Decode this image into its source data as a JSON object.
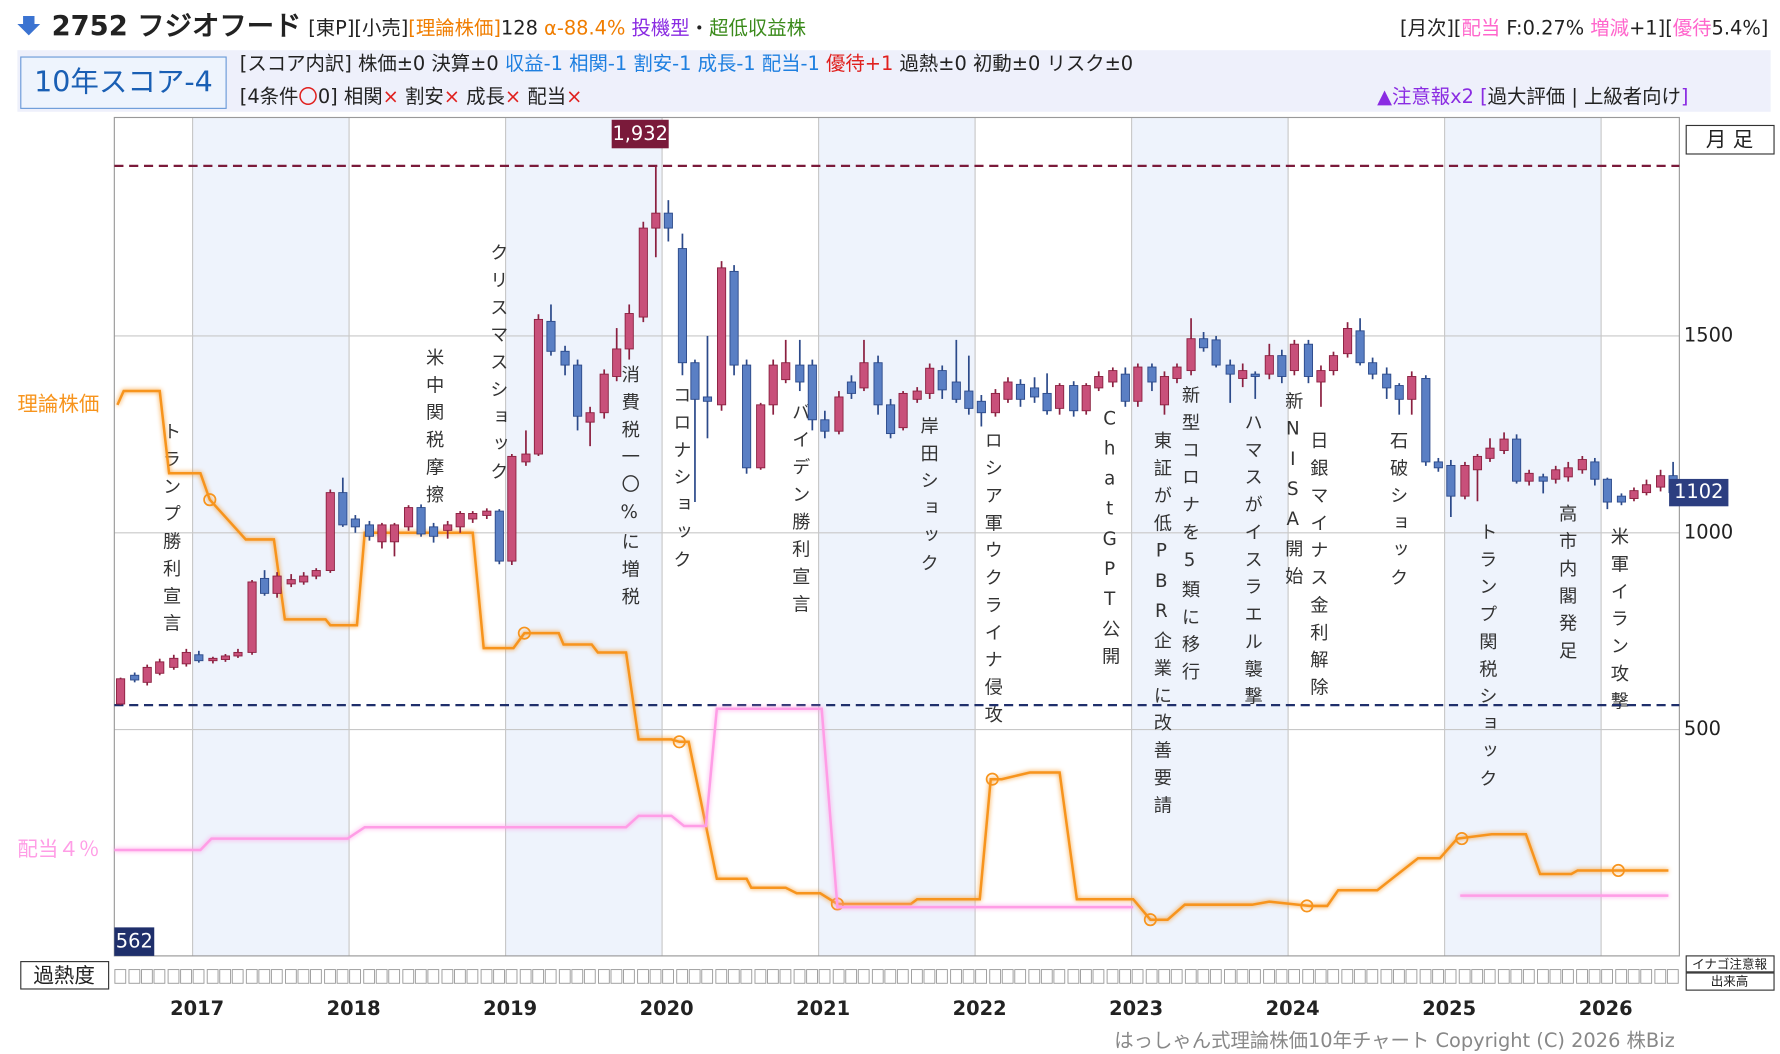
{
  "header": {
    "title": "2752 フジオフード",
    "tags": [
      {
        "text": "[東P][小売]",
        "color": "#222222"
      },
      {
        "text": "[理論株価]",
        "color": "#f07d00"
      },
      {
        "text": "128",
        "color": "#222222"
      },
      {
        "text": " α-88.4%",
        "color": "#f07d00"
      },
      {
        "text": " 投機型",
        "color": "#8a2be2"
      },
      {
        "text": "・",
        "color": "#222222"
      },
      {
        "text": "超低収益株",
        "color": "#3a8a1a"
      }
    ],
    "right_tags": [
      {
        "text": "[月次][",
        "color": "#222222"
      },
      {
        "text": "配当",
        "color": "#ff66cc"
      },
      {
        "text": " F:0.27% ",
        "color": "#222222"
      },
      {
        "text": "増減",
        "color": "#ff66cc"
      },
      {
        "text": "+1][",
        "color": "#222222"
      },
      {
        "text": "優待",
        "color": "#ff66cc"
      },
      {
        "text": "5.4%]",
        "color": "#222222"
      }
    ],
    "score": "10年スコア-4",
    "score_breakdown": [
      {
        "text": "[スコア内訳] 株価±0 決算±0 ",
        "color": "#222222"
      },
      {
        "text": "収益-1 相関-1 割安-1 成長-1 配当-1",
        "color": "#1e7fe0"
      },
      {
        "text": " 優待+1",
        "color": "#e0201e"
      },
      {
        "text": " 過熱±0 初動±0 リスク±0",
        "color": "#222222"
      }
    ],
    "conditions": [
      {
        "text": "[4条件",
        "color": "#222222"
      },
      {
        "text": "〇",
        "color": "#e0201e"
      },
      {
        "text": "0] 相関",
        "color": "#222222"
      },
      {
        "text": "×",
        "color": "#e0201e"
      },
      {
        "text": " 割安",
        "color": "#222222"
      },
      {
        "text": "×",
        "color": "#e0201e"
      },
      {
        "text": " 成長",
        "color": "#222222"
      },
      {
        "text": "×",
        "color": "#e0201e"
      },
      {
        "text": " 配当",
        "color": "#222222"
      },
      {
        "text": "×",
        "color": "#e0201e"
      }
    ],
    "alerts": [
      {
        "text": "▲注意報x2",
        "color": "#8a2be2"
      },
      {
        "text": " [",
        "color": "#8a2be2"
      },
      {
        "text": "過大評価 | 上級者向け",
        "color": "#222222"
      },
      {
        "text": "]",
        "color": "#8a2be2"
      }
    ]
  },
  "chart_data": {
    "type": "candlestick",
    "period": "月 足",
    "up_color": "#c8507a",
    "down_color": "#5a7fc4",
    "xlim": [
      2016.5,
      2026.5
    ],
    "xticks": [
      2017,
      2018,
      2019,
      2020,
      2021,
      2022,
      2023,
      2024,
      2025,
      2026
    ],
    "ylim": [
      -75,
      2055
    ],
    "yticks": [
      500,
      1000,
      1500
    ],
    "grid": true,
    "x": [
      2016.54,
      2016.63,
      2016.71,
      2016.79,
      2016.88,
      2016.96,
      2017.04,
      2017.13,
      2017.21,
      2017.29,
      2017.38,
      2017.46,
      2017.54,
      2017.63,
      2017.71,
      2017.79,
      2017.88,
      2017.96,
      2018.04,
      2018.13,
      2018.21,
      2018.29,
      2018.38,
      2018.46,
      2018.54,
      2018.63,
      2018.71,
      2018.79,
      2018.88,
      2018.96,
      2019.04,
      2019.13,
      2019.21,
      2019.29,
      2019.38,
      2019.46,
      2019.54,
      2019.63,
      2019.71,
      2019.79,
      2019.88,
      2019.96,
      2020.04,
      2020.13,
      2020.21,
      2020.29,
      2020.38,
      2020.46,
      2020.54,
      2020.63,
      2020.71,
      2020.79,
      2020.88,
      2020.96,
      2021.04,
      2021.13,
      2021.21,
      2021.29,
      2021.38,
      2021.46,
      2021.54,
      2021.63,
      2021.71,
      2021.79,
      2021.88,
      2021.96,
      2022.04,
      2022.13,
      2022.21,
      2022.29,
      2022.38,
      2022.46,
      2022.54,
      2022.63,
      2022.71,
      2022.79,
      2022.88,
      2022.96,
      2023.04,
      2023.13,
      2023.21,
      2023.29,
      2023.38,
      2023.46,
      2023.54,
      2023.63,
      2023.71,
      2023.79,
      2023.88,
      2023.96,
      2024.04,
      2024.13,
      2024.21,
      2024.29,
      2024.38,
      2024.46,
      2024.54,
      2024.63,
      2024.71,
      2024.79,
      2024.88,
      2024.96,
      2025.04,
      2025.13,
      2025.21,
      2025.29,
      2025.38,
      2025.46,
      2025.54,
      2025.63,
      2025.71,
      2025.79,
      2025.88,
      2025.96,
      2026.04,
      2026.13,
      2026.21,
      2026.29,
      2026.38,
      2026.46
    ],
    "open": [
      565,
      638,
      620,
      643,
      658,
      667,
      690,
      675,
      678,
      687,
      696,
      884,
      846,
      870,
      875,
      890,
      904,
      1102,
      1035,
      1020,
      977,
      977,
      1015,
      1064,
      1015,
      1006,
      1015,
      1035,
      1044,
      1055,
      928,
      1180,
      1200,
      1537,
      1461,
      1426,
      1281,
      1305,
      1397,
      1467,
      1548,
      1774,
      1812,
      1722,
      1432,
      1345,
      1325,
      1664,
      1426,
      1165,
      1325,
      1389,
      1426,
      1426,
      1287,
      1258,
      1383,
      1368,
      1432,
      1325,
      1267,
      1339,
      1354,
      1412,
      1383,
      1360,
      1334,
      1305,
      1339,
      1377,
      1368,
      1354,
      1316,
      1374,
      1310,
      1368,
      1383,
      1403,
      1334,
      1421,
      1325,
      1392,
      1412,
      1493,
      1490,
      1426,
      1392,
      1403,
      1403,
      1450,
      1412,
      1479,
      1383,
      1412,
      1455,
      1513,
      1432,
      1403,
      1374,
      1339,
      1392,
      1180,
      1171,
      1093,
      1160,
      1189,
      1209,
      1238,
      1131,
      1142,
      1136,
      1142,
      1160,
      1180,
      1136,
      1093,
      1087,
      1102,
      1116,
      1145
    ],
    "high": [
      632,
      645,
      665,
      680,
      690,
      705,
      700,
      685,
      692,
      705,
      880,
      905,
      900,
      895,
      900,
      910,
      1110,
      1140,
      1045,
      1030,
      1025,
      1025,
      1070,
      1072,
      1025,
      1030,
      1055,
      1055,
      1062,
      1060,
      1200,
      1260,
      1555,
      1580,
      1475,
      1440,
      1320,
      1415,
      1520,
      1580,
      1790,
      1932,
      1845,
      1760,
      1440,
      1500,
      1690,
      1680,
      1440,
      1330,
      1440,
      1490,
      1490,
      1440,
      1310,
      1360,
      1400,
      1490,
      1450,
      1340,
      1360,
      1370,
      1430,
      1425,
      1490,
      1450,
      1350,
      1365,
      1395,
      1390,
      1395,
      1405,
      1380,
      1385,
      1380,
      1410,
      1420,
      1420,
      1430,
      1430,
      1410,
      1430,
      1545,
      1510,
      1500,
      1440,
      1430,
      1410,
      1480,
      1465,
      1490,
      1490,
      1425,
      1460,
      1535,
      1545,
      1445,
      1420,
      1380,
      1410,
      1400,
      1190,
      1185,
      1180,
      1200,
      1240,
      1255,
      1250,
      1160,
      1150,
      1170,
      1180,
      1195,
      1190,
      1140,
      1100,
      1115,
      1135,
      1160,
      1180
    ],
    "low": [
      562,
      620,
      612,
      638,
      652,
      660,
      670,
      668,
      672,
      682,
      690,
      840,
      835,
      862,
      868,
      882,
      898,
      1015,
      1000,
      980,
      960,
      940,
      1005,
      990,
      975,
      985,
      1000,
      1025,
      1035,
      920,
      918,
      1170,
      1195,
      1450,
      1400,
      1260,
      1220,
      1290,
      1385,
      1440,
      1535,
      1700,
      1740,
      1400,
      1078,
      1240,
      1310,
      1400,
      1150,
      1160,
      1300,
      1380,
      1360,
      1260,
      1240,
      1250,
      1340,
      1360,
      1300,
      1240,
      1260,
      1330,
      1340,
      1340,
      1330,
      1300,
      1270,
      1295,
      1330,
      1320,
      1330,
      1300,
      1300,
      1295,
      1300,
      1360,
      1370,
      1320,
      1320,
      1360,
      1300,
      1380,
      1400,
      1460,
      1420,
      1330,
      1370,
      1340,
      1390,
      1380,
      1400,
      1380,
      1320,
      1400,
      1445,
      1425,
      1390,
      1340,
      1300,
      1300,
      1170,
      1155,
      1040,
      1085,
      1080,
      1180,
      1200,
      1125,
      1120,
      1100,
      1125,
      1130,
      1150,
      1120,
      1060,
      1070,
      1080,
      1095,
      1105,
      1095
    ],
    "close": [
      629,
      626,
      658,
      672,
      681,
      696,
      675,
      681,
      687,
      696,
      875,
      846,
      890,
      881,
      890,
      904,
      1102,
      1020,
      1015,
      991,
      1020,
      1020,
      1064,
      997,
      991,
      1020,
      1049,
      1049,
      1055,
      928,
      1194,
      1200,
      1542,
      1461,
      1426,
      1296,
      1305,
      1403,
      1467,
      1557,
      1774,
      1812,
      1774,
      1432,
      1339,
      1334,
      1673,
      1426,
      1165,
      1325,
      1426,
      1432,
      1383,
      1287,
      1258,
      1345,
      1354,
      1432,
      1325,
      1252,
      1354,
      1360,
      1418,
      1363,
      1339,
      1316,
      1305,
      1354,
      1383,
      1339,
      1345,
      1310,
      1374,
      1310,
      1374,
      1397,
      1412,
      1334,
      1421,
      1383,
      1397,
      1421,
      1493,
      1470,
      1426,
      1403,
      1412,
      1397,
      1450,
      1397,
      1479,
      1397,
      1412,
      1450,
      1519,
      1432,
      1403,
      1368,
      1339,
      1397,
      1180,
      1165,
      1093,
      1171,
      1194,
      1215,
      1238,
      1131,
      1151,
      1131,
      1160,
      1165,
      1186,
      1136,
      1078,
      1078,
      1107,
      1122,
      1145,
      1102
    ],
    "reference_lines": [
      {
        "value": 1932,
        "label": "1,932",
        "color": "#7a1a3a"
      },
      {
        "value": 562,
        "color": "#1f2f6b"
      }
    ],
    "overlays": [
      {
        "name": "理論株価",
        "color": "#f7941d",
        "x": [
          2016.52,
          2016.56,
          2016.79,
          2016.85,
          2017.05,
          2017.11,
          2017.34,
          2017.52,
          2017.59,
          2017.85,
          2017.88,
          2018.05,
          2018.1,
          2018.79,
          2018.86,
          2019.05,
          2019.12,
          2019.34,
          2019.37,
          2019.55,
          2019.59,
          2019.77,
          2019.85,
          2020.06,
          2020.11,
          2020.17,
          2020.35,
          2020.54,
          2020.57,
          2020.79,
          2020.86,
          2021.01,
          2021.12,
          2021.59,
          2021.63,
          2022.03,
          2022.1,
          2022.17,
          2022.35,
          2022.54,
          2022.65,
          2023.01,
          2023.12,
          2023.23,
          2023.34,
          2023.77,
          2023.88,
          2024.14,
          2024.25,
          2024.32,
          2024.57,
          2024.83,
          2024.97,
          2025.08,
          2025.3,
          2025.52,
          2025.61,
          2025.81,
          2025.85,
          2026.43
        ],
        "values": [
          1325,
          1360,
          1360,
          1151,
          1151,
          1084,
          983,
          983,
          780,
          780,
          765,
          765,
          1000,
          1000,
          707,
          707,
          745,
          745,
          716,
          716,
          696,
          696,
          475,
          475,
          469,
          469,
          121,
          121,
          98,
          98,
          84,
          84,
          57,
          57,
          69,
          69,
          374,
          374,
          391,
          391,
          69,
          69,
          17,
          17,
          55,
          55,
          63,
          52,
          52,
          92,
          92,
          173,
          173,
          223,
          234,
          234,
          133,
          133,
          142,
          142
        ],
        "markers": {
          "x": [
            2017.11,
            2019.12,
            2020.11,
            2021.12,
            2022.11,
            2023.12,
            2024.12,
            2025.11,
            2026.11
          ],
          "values": [
            1084,
            745,
            469,
            57,
            374,
            17,
            52,
            223,
            142
          ]
        }
      },
      {
        "name": "配当４％",
        "color": "#ff9de6",
        "x": [
          2016.5,
          2017.05,
          2017.12,
          2017.99,
          2018.1,
          2019.77,
          2019.85,
          2020.06,
          2020.14,
          2020.28,
          2020.35,
          2021.02,
          2021.12,
          2023.01,
          null,
          2025.1,
          2026.43
        ],
        "values": [
          194,
          194,
          223,
          223,
          252,
          252,
          281,
          281,
          255,
          255,
          553,
          553,
          49,
          49,
          null,
          78,
          78
        ]
      }
    ],
    "annotations": [
      {
        "label": "トランプ勝利宣言",
        "x": 2016.86
      },
      {
        "label": "米中関税摩擦",
        "x": 2018.54
      },
      {
        "label": "クリスマスショック",
        "x": 2018.95
      },
      {
        "label": "消費税一〇%に増税",
        "x": 2019.79
      },
      {
        "label": "コロナショック",
        "x": 2020.12
      },
      {
        "label": "バイデン勝利宣言",
        "x": 2020.88
      },
      {
        "label": "岸田ショック",
        "x": 2021.7
      },
      {
        "label": "ロシア軍ウクライナ侵攻",
        "x": 2022.11
      },
      {
        "label": "ChatGPT公開",
        "x": 2022.86
      },
      {
        "label": "東証が低PBR企業に改善要請",
        "x": 2023.19
      },
      {
        "label": "新型コロナを5類に移行",
        "x": 2023.37
      },
      {
        "label": "ハマスがイスラエル襲撃",
        "x": 2023.77
      },
      {
        "label": "新NISA開始",
        "x": 2024.03
      },
      {
        "label": "日銀マイナス金利解除",
        "x": 2024.19
      },
      {
        "label": "石破ショック",
        "x": 2024.7
      },
      {
        "label": "トランプ関税ショック",
        "x": 2025.27
      },
      {
        "label": "高市内閣発足",
        "x": 2025.78
      },
      {
        "label": "米軍イラン攻撃",
        "x": 2026.11
      }
    ],
    "heat_label": "過熱度",
    "alert_label": "イナゴ注意報",
    "volume_label": "出来高"
  },
  "footer": "はっしゃん式理論株価10年チャート Copyright (C) 2026 株Biz"
}
